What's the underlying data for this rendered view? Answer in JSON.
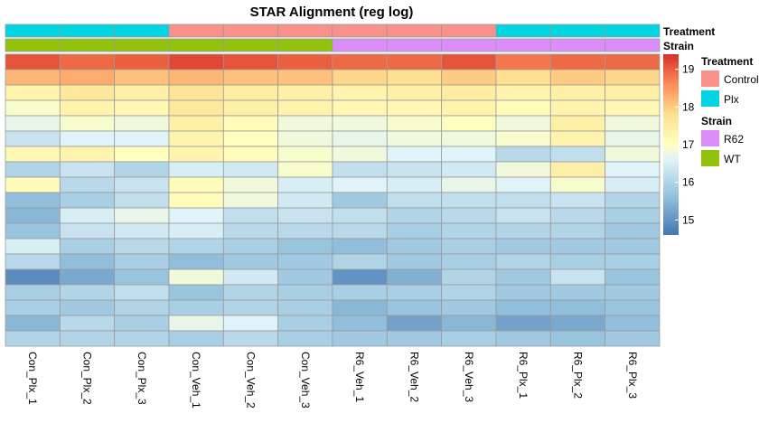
{
  "chart_data": {
    "type": "heatmap",
    "title": "STAR Alignment (reg log)",
    "columns": [
      "Con_Plx_1",
      "Con_Plx_2",
      "Con_Plx_3",
      "Con_Veh_1",
      "Con_Veh_2",
      "Con_Veh_3",
      "R6_Veh_1",
      "R6_Veh_2",
      "R6_Veh_3",
      "R6_Plx_1",
      "R6_Plx_2",
      "R6_Plx_3"
    ],
    "annotations": [
      {
        "name": "Treatment",
        "values": [
          "Plx",
          "Plx",
          "Plx",
          "Control",
          "Control",
          "Control",
          "Control",
          "Control",
          "Control",
          "Plx",
          "Plx",
          "Plx"
        ]
      },
      {
        "name": "Strain",
        "values": [
          "WT",
          "WT",
          "WT",
          "WT",
          "WT",
          "WT",
          "R62",
          "R62",
          "R62",
          "R62",
          "R62",
          "R62"
        ]
      }
    ],
    "annotation_legend": [
      {
        "title": "Treatment",
        "items": [
          {
            "label": "Control",
            "color": "#F8918A"
          },
          {
            "label": "Plx",
            "color": "#00D4E0"
          }
        ]
      },
      {
        "title": "Strain",
        "items": [
          {
            "label": "R62",
            "color": "#DC8EF8"
          },
          {
            "label": "WT",
            "color": "#93C20E"
          }
        ]
      }
    ],
    "color_scale": {
      "range": [
        14.6,
        19.4
      ],
      "ticks": [
        15,
        16,
        17,
        18,
        19
      ],
      "stops": [
        {
          "v": 14.6,
          "c": "#4575B4"
        },
        {
          "v": 15.6,
          "c": "#91BFDB"
        },
        {
          "v": 16.6,
          "c": "#E0F3F8"
        },
        {
          "v": 17.0,
          "c": "#FFFFBF"
        },
        {
          "v": 17.8,
          "c": "#FEE090"
        },
        {
          "v": 18.6,
          "c": "#FC8D59"
        },
        {
          "v": 19.4,
          "c": "#D73027"
        }
      ]
    },
    "values": [
      [
        19.1,
        18.9,
        19.0,
        19.2,
        19.1,
        19.0,
        18.9,
        18.9,
        19.1,
        18.8,
        18.9,
        18.9
      ],
      [
        18.2,
        18.3,
        18.1,
        18.2,
        18.1,
        18.1,
        17.9,
        17.8,
        18.0,
        17.8,
        18.0,
        17.9
      ],
      [
        17.3,
        17.6,
        17.4,
        17.7,
        17.5,
        17.4,
        17.3,
        17.4,
        17.5,
        17.3,
        17.4,
        17.4
      ],
      [
        16.9,
        17.3,
        17.2,
        17.6,
        17.4,
        17.3,
        17.2,
        17.2,
        17.3,
        17.1,
        17.3,
        17.2
      ],
      [
        16.7,
        16.9,
        16.8,
        17.4,
        17.1,
        16.8,
        16.8,
        16.9,
        17.0,
        16.8,
        17.4,
        16.8
      ],
      [
        16.3,
        16.6,
        16.6,
        17.3,
        17.0,
        16.8,
        16.7,
        16.8,
        16.8,
        16.9,
        17.3,
        16.7
      ],
      [
        17.2,
        17.3,
        17.0,
        17.3,
        17.1,
        16.9,
        16.8,
        16.6,
        16.6,
        16.1,
        16.2,
        16.8
      ],
      [
        16.0,
        16.3,
        16.0,
        16.5,
        16.4,
        16.9,
        16.2,
        16.3,
        16.4,
        16.8,
        17.4,
        16.6
      ],
      [
        17.1,
        16.1,
        16.3,
        17.1,
        16.8,
        16.5,
        16.6,
        16.5,
        16.7,
        16.6,
        16.9,
        16.5
      ],
      [
        15.6,
        15.9,
        16.2,
        17.1,
        16.8,
        16.4,
        15.8,
        16.2,
        16.2,
        16.2,
        16.3,
        16.0
      ],
      [
        15.5,
        16.5,
        16.7,
        16.6,
        16.2,
        16.3,
        16.2,
        16.0,
        16.1,
        16.3,
        16.1,
        15.9
      ],
      [
        15.7,
        16.3,
        16.4,
        16.5,
        16.1,
        16.1,
        16.1,
        15.9,
        16.0,
        16.0,
        16.0,
        15.8
      ],
      [
        16.5,
        15.9,
        16.1,
        16.0,
        15.9,
        15.7,
        15.6,
        15.8,
        15.9,
        15.8,
        15.8,
        15.8
      ],
      [
        16.1,
        15.6,
        15.9,
        15.6,
        15.8,
        15.8,
        16.0,
        15.8,
        15.9,
        16.0,
        15.9,
        15.9
      ],
      [
        14.9,
        15.3,
        15.7,
        16.8,
        16.4,
        15.8,
        15.0,
        15.4,
        16.0,
        15.8,
        16.3,
        15.7
      ],
      [
        15.9,
        16.0,
        16.2,
        15.7,
        16.0,
        15.9,
        15.9,
        15.9,
        16.0,
        15.8,
        15.8,
        15.8
      ],
      [
        15.9,
        15.8,
        16.0,
        15.9,
        16.0,
        15.9,
        15.5,
        15.7,
        15.8,
        15.6,
        15.6,
        15.7
      ],
      [
        15.5,
        16.1,
        15.9,
        16.7,
        16.6,
        15.9,
        15.6,
        15.2,
        15.5,
        15.2,
        15.3,
        15.6
      ],
      [
        16.0,
        16.0,
        16.0,
        15.9,
        16.1,
        15.9,
        15.8,
        15.8,
        15.9,
        15.8,
        15.7,
        15.8
      ]
    ]
  }
}
